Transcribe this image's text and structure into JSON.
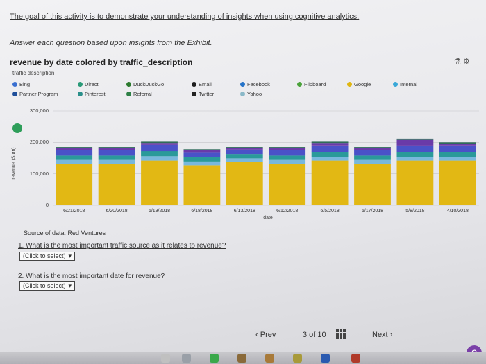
{
  "intro": {
    "line1": "The goal of this activity is to demonstrate your understanding of insights when using cognitive analytics.",
    "line2": "Answer each question based upon insights from the Exhibit."
  },
  "chart": {
    "title": "revenue by date colored by traffic_description",
    "tools_label": "⚗ ⚙",
    "legend_title": "traffic description",
    "legend": [
      {
        "label": "Bing",
        "color": "#3a6fd0"
      },
      {
        "label": "Direct",
        "color": "#2a9a78"
      },
      {
        "label": "DuckDuckGo",
        "color": "#2c7a2e"
      },
      {
        "label": "Email",
        "color": "#1e1e1e"
      },
      {
        "label": "Facebook",
        "color": "#2673c8"
      },
      {
        "label": "Flipboard",
        "color": "#4aa23a"
      },
      {
        "label": "Google",
        "color": "#e0b610"
      },
      {
        "label": "Internal",
        "color": "#3aa8d8"
      },
      {
        "label": "Partner Program",
        "color": "#1f4f9a"
      },
      {
        "label": "Pinterest",
        "color": "#2a8f8a"
      },
      {
        "label": "Referral",
        "color": "#2e8046"
      },
      {
        "label": "Twitter",
        "color": "#222222"
      },
      {
        "label": "Yahoo",
        "color": "#8ab8c8"
      }
    ],
    "y_ticks": [
      "300,000",
      "200,000",
      "100,000",
      "0"
    ],
    "y_label": "revenue (Sum)",
    "x_label": "date",
    "source": "Source of data: Red Ventures"
  },
  "chart_data": {
    "type": "bar",
    "title": "revenue by date colored by traffic_description",
    "xlabel": "date",
    "ylabel": "revenue (Sum)",
    "ylim": [
      0,
      300000
    ],
    "categories": [
      "6/21/2018",
      "6/20/2018",
      "6/19/2018",
      "6/18/2018",
      "6/13/2018",
      "6/12/2018",
      "6/5/2018",
      "5/17/2018",
      "5/8/2018",
      "4/10/2018"
    ],
    "series": [
      {
        "name": "Pinterest",
        "values": [
          2000,
          2000,
          2000,
          2000,
          2000,
          2000,
          2000,
          2000,
          2000,
          2000
        ]
      },
      {
        "name": "Google",
        "values": [
          130000,
          130000,
          140000,
          125000,
          135000,
          130000,
          140000,
          130000,
          140000,
          140000
        ]
      },
      {
        "name": "Internal",
        "values": [
          12000,
          12000,
          14000,
          12000,
          12000,
          12000,
          12000,
          12000,
          12000,
          12000
        ]
      },
      {
        "name": "Direct",
        "values": [
          14000,
          14000,
          16000,
          14000,
          14000,
          14000,
          16000,
          14000,
          16000,
          16000
        ]
      },
      {
        "name": "Bing",
        "values": [
          18000,
          18000,
          20000,
          16000,
          14000,
          18000,
          20000,
          18000,
          20000,
          20000
        ]
      },
      {
        "name": "Partner Program",
        "values": [
          6000,
          6000,
          6000,
          6000,
          5000,
          6000,
          8000,
          6000,
          18000,
          6000
        ]
      },
      {
        "name": "Referral",
        "values": [
          3000,
          3000,
          4000,
          3000,
          3000,
          3000,
          4000,
          3000,
          4000,
          4000
        ]
      }
    ],
    "legend_position": "top-left",
    "grid": true
  },
  "questions": [
    {
      "text": "1. What is the most important traffic source as it relates to revenue?",
      "select": "(Click to select)"
    },
    {
      "text": "2. What is the most important date for revenue?",
      "select": "(Click to select)"
    }
  ],
  "nav": {
    "prev": "Prev",
    "page": "3 of 10",
    "next": "Next"
  },
  "help": "?",
  "colors": {
    "Pinterest": "#3e9a6a",
    "Google": "#e2b814",
    "Internal": "#78b8dc",
    "Direct": "#2a9a9a",
    "Bing": "#4a52c8",
    "Partner Program": "#6a3aa8",
    "Referral": "#2f6b5a"
  }
}
